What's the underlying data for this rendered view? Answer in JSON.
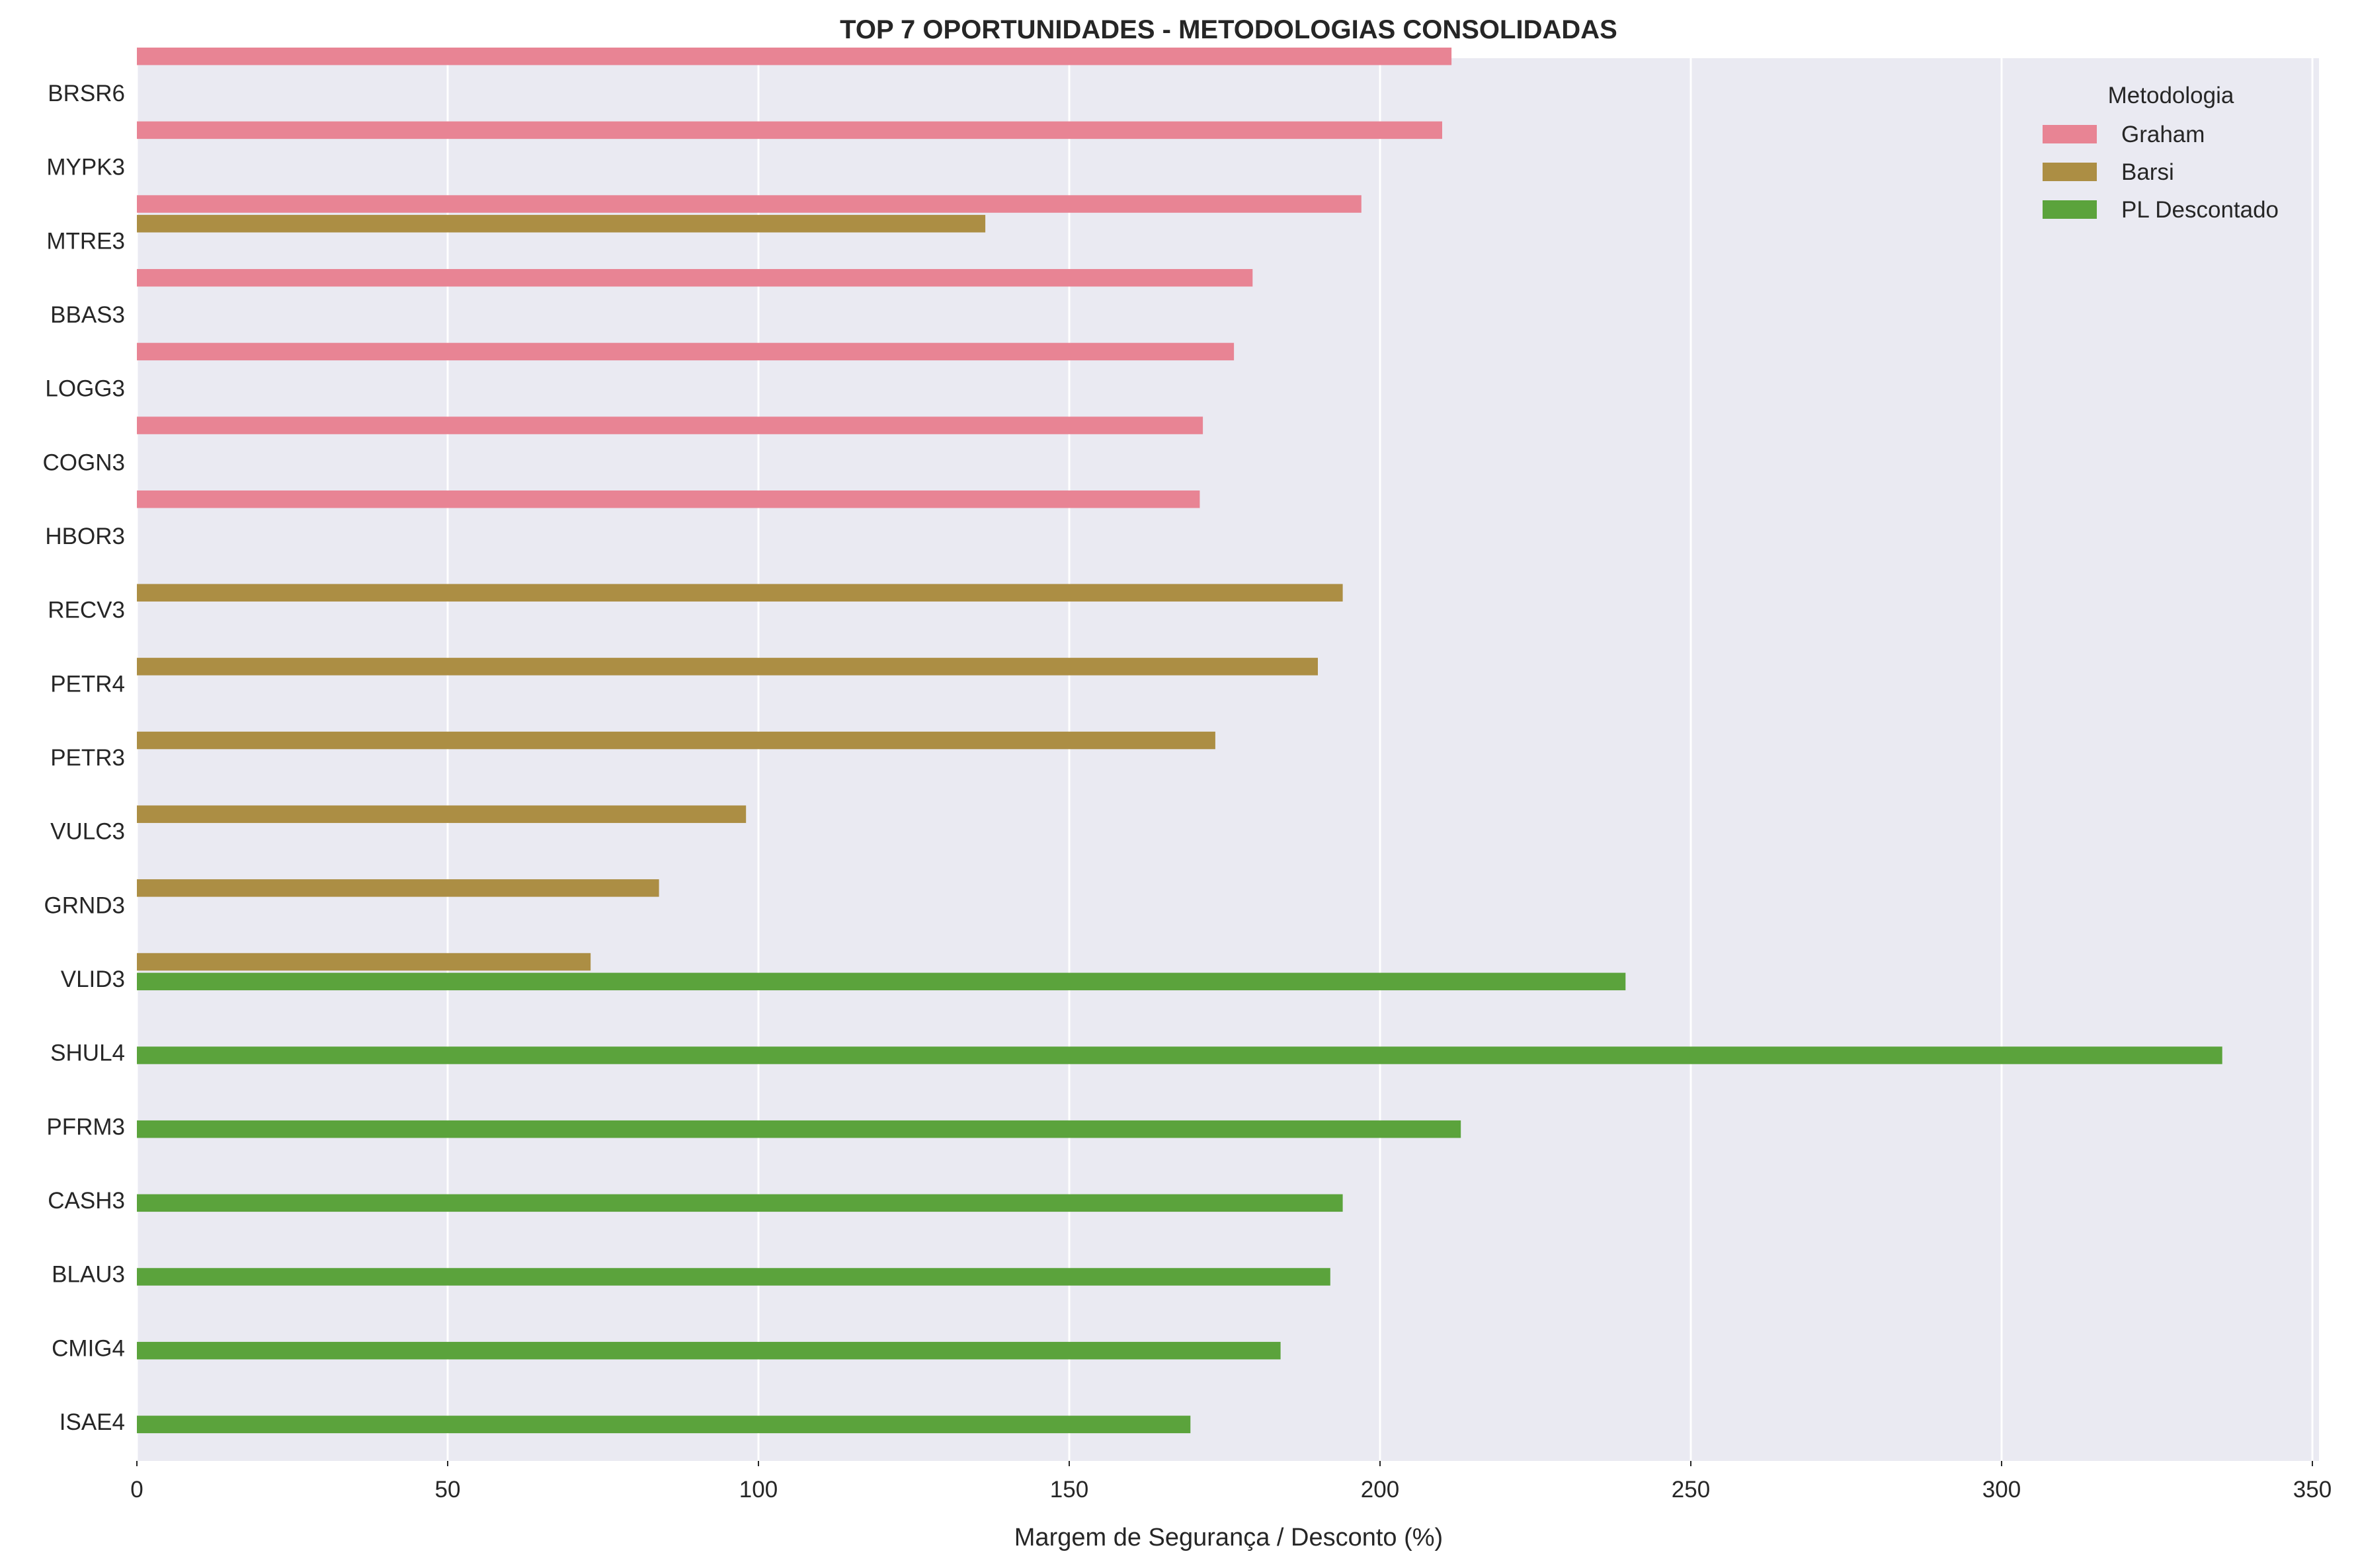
{
  "chart_data": {
    "type": "bar",
    "orientation": "horizontal",
    "title": "TOP 7 OPORTUNIDADES - METODOLOGIAS CONSOLIDADAS",
    "xlabel": "Margem de Segurança / Desconto (%)",
    "ylabel": "",
    "xlim": [
      0,
      350
    ],
    "xticks": [
      0,
      50,
      100,
      150,
      200,
      250,
      300,
      350
    ],
    "grid": true,
    "background": "#EAEAF2",
    "legend": {
      "title": "Metodologia",
      "placement": "top-right"
    },
    "categories": [
      "BRSR6",
      "MYPK3",
      "MTRE3",
      "BBAS3",
      "LOGG3",
      "COGN3",
      "HBOR3",
      "RECV3",
      "PETR4",
      "PETR3",
      "VULC3",
      "GRND3",
      "VLID3",
      "SHUL4",
      "PFRM3",
      "CASH3",
      "BLAU3",
      "CMIG4",
      "ISAE4"
    ],
    "series": [
      {
        "name": "Graham",
        "color": "#E88494",
        "values": [
          211.5,
          210,
          197,
          179.5,
          176.5,
          171.5,
          171,
          null,
          null,
          null,
          null,
          null,
          null,
          null,
          null,
          null,
          null,
          null,
          null
        ]
      },
      {
        "name": "Barsi",
        "color": "#AC8E44",
        "values": [
          null,
          null,
          136.5,
          null,
          null,
          null,
          null,
          194,
          190,
          173.5,
          98,
          84,
          73,
          null,
          null,
          null,
          null,
          null,
          null
        ]
      },
      {
        "name": "PL Descontado",
        "color": "#5BA33C",
        "values": [
          null,
          null,
          null,
          null,
          null,
          null,
          null,
          null,
          null,
          null,
          null,
          null,
          239.5,
          335.5,
          213,
          194,
          192,
          184,
          169.5
        ]
      }
    ]
  }
}
